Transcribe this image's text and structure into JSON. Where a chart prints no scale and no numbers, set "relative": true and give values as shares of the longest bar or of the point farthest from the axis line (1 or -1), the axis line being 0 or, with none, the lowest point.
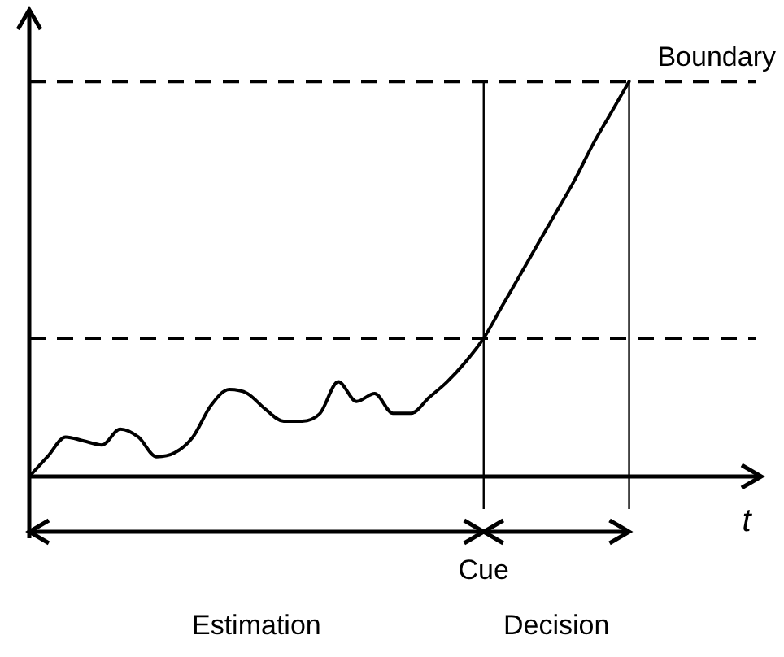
{
  "chart_data": {
    "type": "line",
    "relative": true,
    "xlabel": "t",
    "categories": [
      null,
      null,
      null,
      null,
      null,
      null,
      null,
      null,
      null,
      null,
      null,
      null,
      null,
      null,
      null,
      null,
      null,
      null,
      null,
      null,
      null,
      null,
      null,
      null,
      null,
      null,
      null,
      null,
      null,
      null,
      null,
      null,
      null,
      null,
      null,
      null,
      null,
      null,
      null,
      null,
      null
    ],
    "series": [
      {
        "color": "#000000",
        "values": [
          0,
          0.05,
          0.1,
          0.09,
          0.08,
          0.12,
          0.1,
          0.05,
          0.06,
          0.1,
          0.18,
          0.22,
          0.21,
          0.17,
          0.14,
          0.14,
          0.16,
          0.24,
          0.19,
          0.21,
          0.16,
          0.16,
          0.2,
          0.24,
          0.29,
          0.35,
          0.43,
          0.51,
          0.59,
          0.67,
          0.75,
          0.84,
          0.92,
          1,
          null,
          null,
          null,
          null,
          null,
          null,
          null
        ]
      }
    ],
    "ref_lines": [
      {
        "axis": "y",
        "value": 1,
        "label": "Boundary",
        "line_style": "dashed"
      },
      {
        "axis": "y",
        "value": 0.35,
        "line_style": "dashed"
      }
    ],
    "annotations": [
      "Cue",
      "Estimation",
      "Decision"
    ],
    "legend": false,
    "marker": "none",
    "line_style": "solid"
  }
}
